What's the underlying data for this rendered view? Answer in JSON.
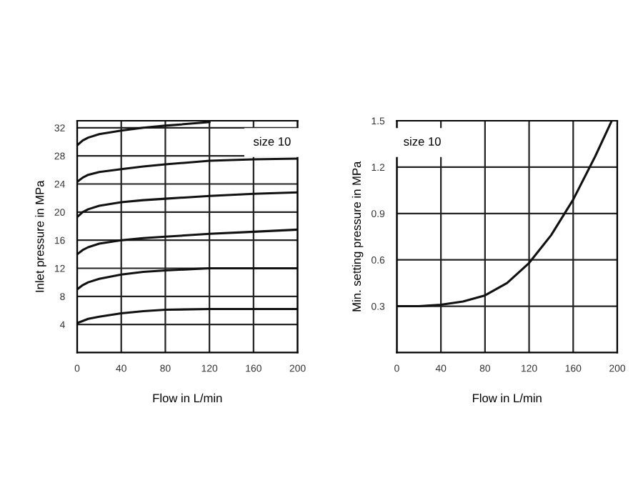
{
  "chart_data": [
    {
      "type": "line",
      "xlabel": "Flow in L/min",
      "ylabel": "Inlet pressure in MPa",
      "annotations": [
        "size 10"
      ],
      "xlim": [
        0,
        200
      ],
      "ylim": [
        0,
        33
      ],
      "xticks": [
        0,
        40,
        80,
        120,
        160,
        200
      ],
      "yticks": [
        4,
        8,
        12,
        16,
        20,
        24,
        28,
        32
      ],
      "grid": true,
      "legend": false,
      "marker": "none",
      "line_style": "solid",
      "series": [
        {
          "color": "#111111",
          "x": [
            0,
            5,
            10,
            20,
            40,
            60,
            80,
            120,
            160,
            200
          ],
          "values": [
            4.2,
            4.5,
            4.8,
            5.1,
            5.6,
            5.9,
            6.1,
            6.2,
            6.2,
            6.2
          ]
        },
        {
          "color": "#111111",
          "x": [
            0,
            5,
            10,
            20,
            40,
            60,
            80,
            120,
            160,
            200
          ],
          "values": [
            9,
            9.6,
            10,
            10.5,
            11.1,
            11.5,
            11.7,
            12,
            12,
            12
          ]
        },
        {
          "color": "#111111",
          "x": [
            0,
            5,
            10,
            20,
            40,
            60,
            80,
            120,
            160,
            200
          ],
          "values": [
            14,
            14.6,
            15,
            15.5,
            16,
            16.3,
            16.5,
            16.9,
            17.2,
            17.5
          ]
        },
        {
          "color": "#111111",
          "x": [
            0,
            5,
            10,
            20,
            40,
            60,
            80,
            120,
            160,
            200
          ],
          "values": [
            19.3,
            20,
            20.4,
            20.9,
            21.4,
            21.7,
            21.9,
            22.3,
            22.6,
            22.8
          ]
        },
        {
          "color": "#111111",
          "x": [
            0,
            5,
            10,
            20,
            40,
            60,
            80,
            120,
            160,
            200
          ],
          "values": [
            24.3,
            24.9,
            25.3,
            25.7,
            26.1,
            26.5,
            26.8,
            27.3,
            27.5,
            27.6
          ]
        },
        {
          "color": "#111111",
          "x": [
            0,
            5,
            10,
            20,
            40,
            60,
            80,
            120
          ],
          "values": [
            29.5,
            30.2,
            30.6,
            31.1,
            31.6,
            32,
            32.3,
            32.8
          ]
        }
      ]
    },
    {
      "type": "line",
      "xlabel": "Flow in L/min",
      "ylabel": "Min. setting pressure in MPa",
      "annotations": [
        "size 10"
      ],
      "xlim": [
        0,
        200
      ],
      "ylim": [
        0,
        1.5
      ],
      "xticks": [
        0,
        40,
        80,
        120,
        160,
        200
      ],
      "yticks": [
        0.3,
        0.6,
        0.9,
        1.2,
        1.5
      ],
      "grid": true,
      "legend": false,
      "marker": "none",
      "line_style": "solid",
      "series": [
        {
          "color": "#111111",
          "x": [
            0,
            20,
            40,
            60,
            80,
            100,
            120,
            140,
            160,
            180,
            195
          ],
          "values": [
            0.3,
            0.3,
            0.31,
            0.33,
            0.37,
            0.45,
            0.58,
            0.76,
            0.99,
            1.27,
            1.5
          ]
        }
      ]
    }
  ]
}
